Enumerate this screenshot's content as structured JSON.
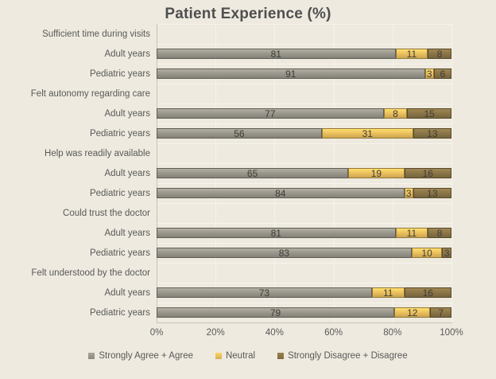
{
  "title": "Patient Experience (%)",
  "colors": {
    "background": "#EEEADF",
    "gridline": "#F6F3E9",
    "axis_line": "#C7C3B5",
    "title_text": "#4F4F4F",
    "label_text": "#595959",
    "value_text": "#3E3D39"
  },
  "chart_data": {
    "type": "bar",
    "variant": "horizontal 100% stacked",
    "title": "Patient Experience (%)",
    "xlabel": "",
    "ylabel": "",
    "x_axis": {
      "min": 0,
      "max": 100,
      "ticks": [
        "0%",
        "20%",
        "40%",
        "60%",
        "80%",
        "100%"
      ]
    },
    "grid": true,
    "legend_position": "bottom",
    "series": [
      {
        "name": "Strongly Agree + Agree",
        "color": "#9A978C"
      },
      {
        "name": "Neutral",
        "color": "#ECC15E"
      },
      {
        "name": "Strongly Disagree + Disagree",
        "color": "#8B7547"
      }
    ],
    "groups": [
      {
        "label": "Sufficient time during visits",
        "rows": [
          {
            "label": "Adult years",
            "values": [
              81,
              11,
              8
            ]
          },
          {
            "label": "Pediatric years",
            "values": [
              91,
              3,
              6
            ]
          }
        ]
      },
      {
        "label": "Felt autonomy regarding care",
        "rows": [
          {
            "label": "Adult years",
            "values": [
              77,
              8,
              15
            ]
          },
          {
            "label": "Pediatric years",
            "values": [
              56,
              31,
              13
            ]
          }
        ]
      },
      {
        "label": "Help was readily available",
        "rows": [
          {
            "label": "Adult years",
            "values": [
              65,
              19,
              16
            ]
          },
          {
            "label": "Pediatric years",
            "values": [
              84,
              3,
              13
            ]
          }
        ]
      },
      {
        "label": "Could trust the doctor",
        "rows": [
          {
            "label": "Adult years",
            "values": [
              81,
              11,
              8
            ]
          },
          {
            "label": "Pediatric years",
            "values": [
              83,
              10,
              3
            ]
          }
        ]
      },
      {
        "label": "Felt understood by the doctor",
        "rows": [
          {
            "label": "Adult years",
            "values": [
              73,
              11,
              16
            ]
          },
          {
            "label": "Pediatric years",
            "values": [
              79,
              12,
              7
            ]
          }
        ]
      }
    ]
  }
}
